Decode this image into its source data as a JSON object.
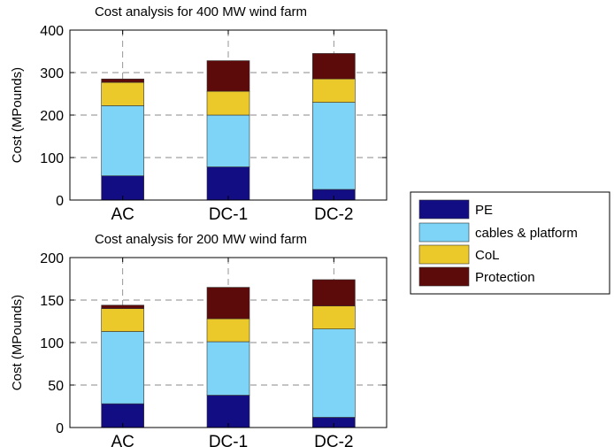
{
  "chart_data": [
    {
      "type": "bar",
      "stacked": true,
      "title": "Cost analysis for 400 MW wind farm",
      "xlabel": "",
      "ylabel": "Cost (MPounds)",
      "ylim": [
        0,
        400
      ],
      "yticks": [
        "0",
        "100",
        "200",
        "300",
        "400"
      ],
      "categories": [
        "AC",
        "DC-1",
        "DC-2"
      ],
      "grid": true,
      "series": [
        {
          "name": "PE",
          "values": [
            57,
            78,
            25
          ]
        },
        {
          "name": "cables & platform",
          "values": [
            165,
            122,
            205
          ]
        },
        {
          "name": "CoL",
          "values": [
            55,
            56,
            55
          ]
        },
        {
          "name": "Protection",
          "values": [
            8,
            72,
            60
          ]
        }
      ]
    },
    {
      "type": "bar",
      "stacked": true,
      "title": "Cost analysis for 200 MW wind farm",
      "xlabel": "",
      "ylabel": "Cost (MPounds)",
      "ylim": [
        0,
        200
      ],
      "yticks": [
        "0",
        "50",
        "100",
        "150",
        "200"
      ],
      "categories": [
        "AC",
        "DC-1",
        "DC-2"
      ],
      "grid": true,
      "series": [
        {
          "name": "PE",
          "values": [
            28,
            38,
            12
          ]
        },
        {
          "name": "cables & platform",
          "values": [
            85,
            63,
            104
          ]
        },
        {
          "name": "CoL",
          "values": [
            27,
            27,
            27
          ]
        },
        {
          "name": "Protection",
          "values": [
            4,
            37,
            31
          ]
        }
      ]
    }
  ],
  "legend": {
    "placement": "right",
    "items": [
      {
        "label": "PE",
        "color": "#120d82"
      },
      {
        "label": "cables & platform",
        "color": "#7dd4f7"
      },
      {
        "label": "CoL",
        "color": "#ecc92b"
      },
      {
        "label": "Protection",
        "color": "#5c0a0a"
      }
    ]
  }
}
